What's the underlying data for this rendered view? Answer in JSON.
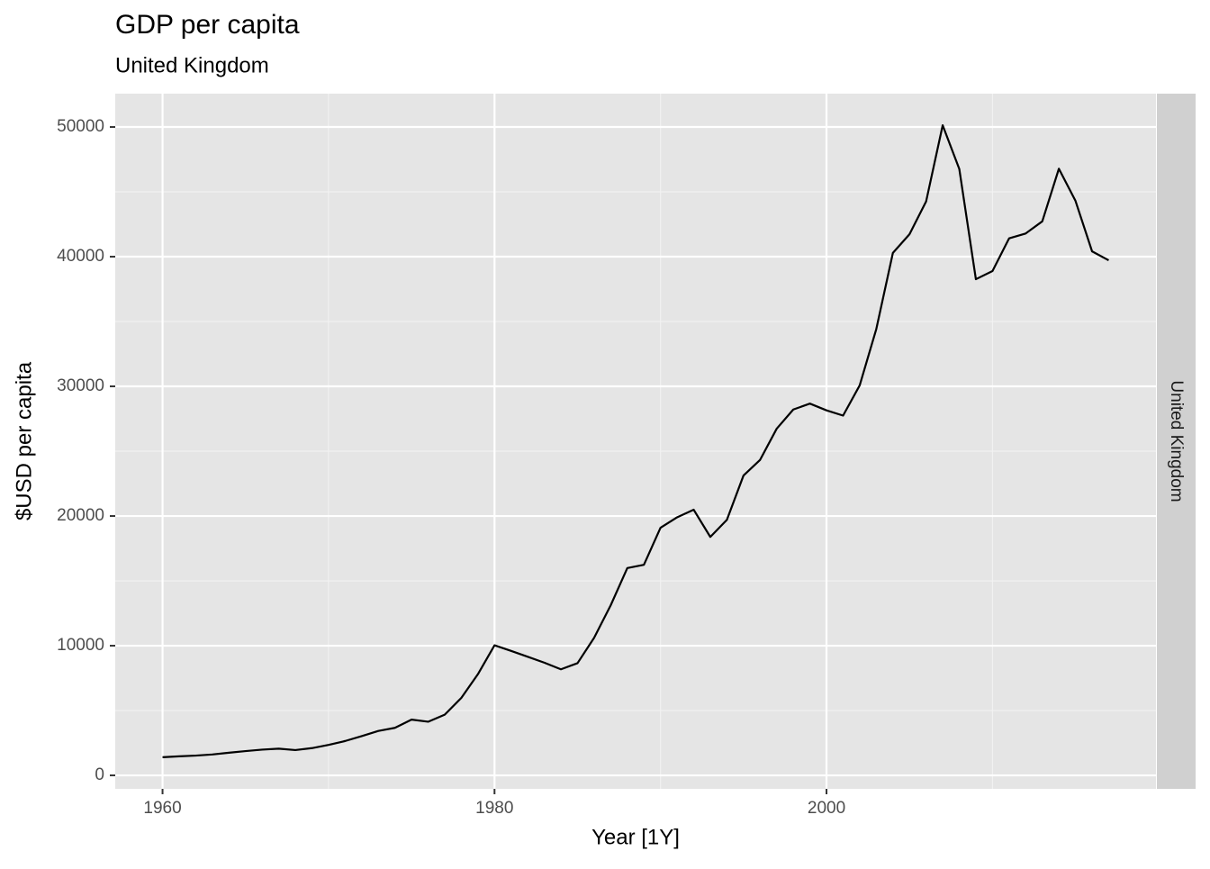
{
  "chart_data": {
    "type": "line",
    "title": "GDP per capita",
    "subtitle": "United Kingdom",
    "xlabel": "Year [1Y]",
    "ylabel": "$USD per capita",
    "x": [
      1960,
      1961,
      1962,
      1963,
      1964,
      1965,
      1966,
      1967,
      1968,
      1969,
      1970,
      1971,
      1972,
      1973,
      1974,
      1975,
      1976,
      1977,
      1978,
      1979,
      1980,
      1981,
      1982,
      1983,
      1984,
      1985,
      1986,
      1987,
      1988,
      1989,
      1990,
      1991,
      1992,
      1993,
      1994,
      1995,
      1996,
      1997,
      1998,
      1999,
      2000,
      2001,
      2002,
      2003,
      2004,
      2005,
      2006,
      2007,
      2008,
      2009,
      2010,
      2011,
      2012,
      2013,
      2014,
      2015,
      2016,
      2017
    ],
    "series": [
      {
        "name": "United Kingdom",
        "color": "#000000",
        "values": [
          1398,
          1472,
          1525,
          1613,
          1748,
          1873,
          1986,
          2058,
          1952,
          2101,
          2348,
          2650,
          3030,
          3426,
          3666,
          4300,
          4138,
          4682,
          5977,
          7805,
          10032,
          9599,
          9146,
          8692,
          8179,
          8652,
          10611,
          13119,
          15987,
          16240,
          19095,
          19901,
          20487,
          18389,
          19710,
          23123,
          24333,
          26734,
          28214,
          28669,
          28150,
          27745,
          30077,
          34419,
          40290,
          41732,
          44252,
          50135,
          46768,
          38262,
          38893,
          41412,
          41790,
          42724,
          46783,
          44305,
          40412,
          39720
        ]
      }
    ],
    "xlim": [
      1957.15,
      2019.85
    ],
    "xticks": [
      1960,
      1980,
      2000
    ],
    "minor_xticks": [
      1970,
      1990,
      2010
    ],
    "ylim": [
      -1039,
      52572
    ],
    "yticks": [
      0,
      10000,
      20000,
      30000,
      40000,
      50000
    ],
    "minor_yticks": [
      5000,
      15000,
      25000,
      35000,
      45000
    ],
    "grid": true
  }
}
